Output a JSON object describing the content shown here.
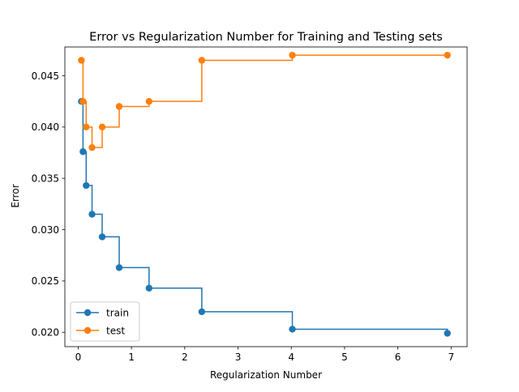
{
  "chart_data": {
    "type": "line",
    "drawstyle": "steps-post",
    "title": "Error vs Regularization Number for Training and Testing sets",
    "xlabel": "Regularization Number",
    "ylabel": "Error",
    "xlim": [
      -0.25,
      7.3
    ],
    "ylim": [
      0.0186,
      0.0478
    ],
    "xticks": [
      0,
      1,
      2,
      3,
      4,
      5,
      6,
      7
    ],
    "xtick_labels": [
      "0",
      "1",
      "2",
      "3",
      "4",
      "5",
      "6",
      "7"
    ],
    "yticks": [
      0.02,
      0.025,
      0.03,
      0.035,
      0.04,
      0.045
    ],
    "ytick_labels": [
      "0.020",
      "0.025",
      "0.030",
      "0.035",
      "0.040",
      "0.045"
    ],
    "grid": false,
    "legend_position": "lower-left",
    "x": [
      0.06,
      0.09,
      0.15,
      0.26,
      0.45,
      0.77,
      1.33,
      2.32,
      4.02,
      6.93
    ],
    "series": [
      {
        "name": "train",
        "color": "#1f77b4",
        "values": [
          0.0425,
          0.0376,
          0.0343,
          0.0315,
          0.0293,
          0.0263,
          0.0243,
          0.022,
          0.0203,
          0.0199
        ]
      },
      {
        "name": "test",
        "color": "#ff7f0e",
        "values": [
          0.0465,
          0.0425,
          0.04,
          0.038,
          0.04,
          0.042,
          0.0425,
          0.0465,
          0.047,
          0.047
        ]
      }
    ]
  }
}
